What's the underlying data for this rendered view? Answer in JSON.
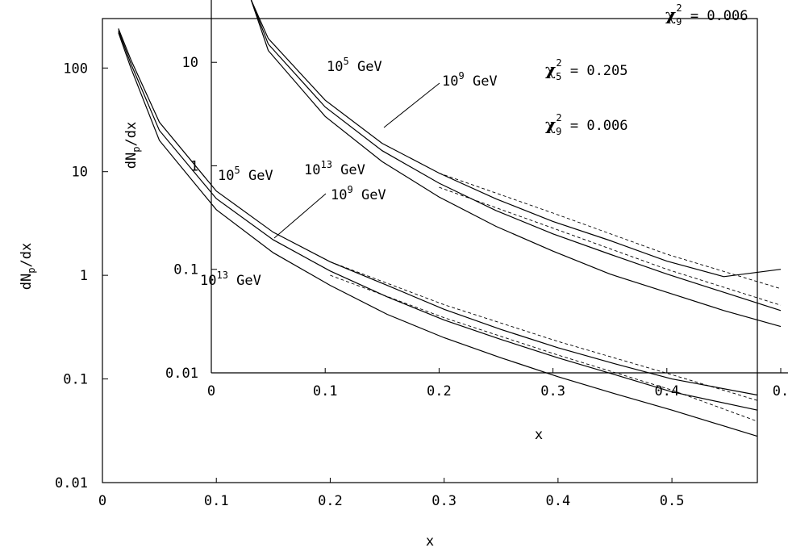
{
  "chart_data": [
    {
      "panel": "main",
      "type": "line",
      "xlabel": "x",
      "ylabel_main": "dN",
      "ylabel_sub": "p",
      "ylabel_tail": "/dx",
      "xlim": [
        0,
        0.575
      ],
      "ylim": [
        0.01,
        300
      ],
      "yscale": "log",
      "grid": false,
      "x_ticks": [
        "0",
        "0.1",
        "0.2",
        "0.3",
        "0.4",
        "0.5"
      ],
      "y_ticks": [
        "100",
        "10",
        "1",
        "0.1",
        "0.01"
      ],
      "annotations": [
        {
          "base": "10",
          "sup": "5",
          "unit": " GeV"
        },
        {
          "base": "10",
          "sup": "9",
          "unit": " GeV"
        },
        {
          "base": "10",
          "sup": "13",
          "unit": " GeV"
        }
      ],
      "series": [
        {
          "style": "solid",
          "points": [
            [
              0.014,
              240
            ],
            [
              0.025,
              120
            ],
            [
              0.05,
              30
            ],
            [
              0.1,
              6.5
            ],
            [
              0.15,
              2.6
            ],
            [
              0.2,
              1.35
            ],
            [
              0.25,
              0.8
            ],
            [
              0.3,
              0.47
            ],
            [
              0.35,
              0.3
            ],
            [
              0.4,
              0.2
            ],
            [
              0.45,
              0.14
            ],
            [
              0.5,
              0.1
            ],
            [
              0.575,
              0.07
            ]
          ]
        },
        {
          "style": "solid",
          "points": [
            [
              0.014,
              230
            ],
            [
              0.025,
              110
            ],
            [
              0.05,
              25
            ],
            [
              0.1,
              5.5
            ],
            [
              0.15,
              2.2
            ],
            [
              0.2,
              1.1
            ],
            [
              0.25,
              0.62
            ],
            [
              0.3,
              0.37
            ],
            [
              0.35,
              0.24
            ],
            [
              0.4,
              0.16
            ],
            [
              0.45,
              0.11
            ],
            [
              0.5,
              0.075
            ],
            [
              0.575,
              0.05
            ]
          ]
        },
        {
          "style": "solid",
          "points": [
            [
              0.014,
              220
            ],
            [
              0.025,
              100
            ],
            [
              0.05,
              20
            ],
            [
              0.1,
              4.3
            ],
            [
              0.15,
              1.65
            ],
            [
              0.2,
              0.8
            ],
            [
              0.25,
              0.42
            ],
            [
              0.3,
              0.25
            ],
            [
              0.35,
              0.16
            ],
            [
              0.4,
              0.105
            ],
            [
              0.45,
              0.072
            ],
            [
              0.5,
              0.05
            ],
            [
              0.575,
              0.028
            ]
          ]
        },
        {
          "style": "dashed",
          "points": [
            [
              0.2,
              1.35
            ],
            [
              0.3,
              0.52
            ],
            [
              0.4,
              0.23
            ],
            [
              0.5,
              0.11
            ],
            [
              0.575,
              0.062
            ]
          ]
        },
        {
          "style": "dashed",
          "points": [
            [
              0.2,
              1.0
            ],
            [
              0.3,
              0.39
            ],
            [
              0.4,
              0.17
            ],
            [
              0.5,
              0.078
            ],
            [
              0.575,
              0.039
            ]
          ]
        }
      ]
    },
    {
      "panel": "inset",
      "type": "line",
      "xlabel": "x",
      "ylabel_main": "dN",
      "ylabel_sub": "p",
      "ylabel_tail": "/dx",
      "xlim": [
        0,
        0.5
      ],
      "ylim": [
        0.01,
        40
      ],
      "yscale": "log",
      "grid": false,
      "x_ticks": [
        "0",
        "0.1",
        "0.2",
        "0.3",
        "0.4",
        "0."
      ],
      "y_ticks": [
        "10",
        "1",
        "0.1",
        "0.01"
      ],
      "annotations": [
        {
          "base": "10",
          "sup": "5",
          "unit": " GeV"
        },
        {
          "base": "10",
          "sup": "9",
          "unit": " GeV"
        },
        {
          "base": "10",
          "sup": "13",
          "unit": " GeV"
        }
      ],
      "chi_labels": [
        {
          "letter": "χ",
          "sub": "5",
          "sup": "2",
          "text": " = 0.205"
        },
        {
          "letter": "χ",
          "sub": "9",
          "sup": "2",
          "text": " = 0.006"
        },
        {
          "letter": "χ",
          "sub": "9",
          "sup": "2",
          "text": " = 0.006"
        }
      ],
      "series": [
        {
          "style": "solid",
          "points": [
            [
              0.035,
              40
            ],
            [
              0.05,
              17
            ],
            [
              0.1,
              4.3
            ],
            [
              0.15,
              1.65
            ],
            [
              0.2,
              0.85
            ],
            [
              0.25,
              0.48
            ],
            [
              0.3,
              0.29
            ],
            [
              0.35,
              0.19
            ],
            [
              0.4,
              0.12
            ],
            [
              0.45,
              0.085
            ],
            [
              0.5,
              0.1
            ]
          ]
        },
        {
          "style": "solid",
          "points": [
            [
              0.035,
              40
            ],
            [
              0.05,
              15
            ],
            [
              0.1,
              3.7
            ],
            [
              0.15,
              1.4
            ],
            [
              0.2,
              0.68
            ],
            [
              0.25,
              0.37
            ],
            [
              0.3,
              0.22
            ],
            [
              0.35,
              0.14
            ],
            [
              0.4,
              0.09
            ],
            [
              0.45,
              0.06
            ],
            [
              0.5,
              0.04
            ]
          ]
        },
        {
          "style": "solid",
          "points": [
            [
              0.035,
              40
            ],
            [
              0.05,
              13
            ],
            [
              0.1,
              3.0
            ],
            [
              0.15,
              1.1
            ],
            [
              0.2,
              0.5
            ],
            [
              0.25,
              0.26
            ],
            [
              0.3,
              0.15
            ],
            [
              0.35,
              0.09
            ],
            [
              0.4,
              0.06
            ],
            [
              0.45,
              0.04
            ],
            [
              0.5,
              0.028
            ]
          ]
        },
        {
          "style": "dashed",
          "points": [
            [
              0.2,
              0.85
            ],
            [
              0.3,
              0.35
            ],
            [
              0.4,
              0.14
            ],
            [
              0.5,
              0.065
            ]
          ]
        },
        {
          "style": "dashed",
          "points": [
            [
              0.2,
              0.62
            ],
            [
              0.3,
              0.25
            ],
            [
              0.4,
              0.1
            ],
            [
              0.5,
              0.045
            ]
          ]
        }
      ]
    }
  ]
}
